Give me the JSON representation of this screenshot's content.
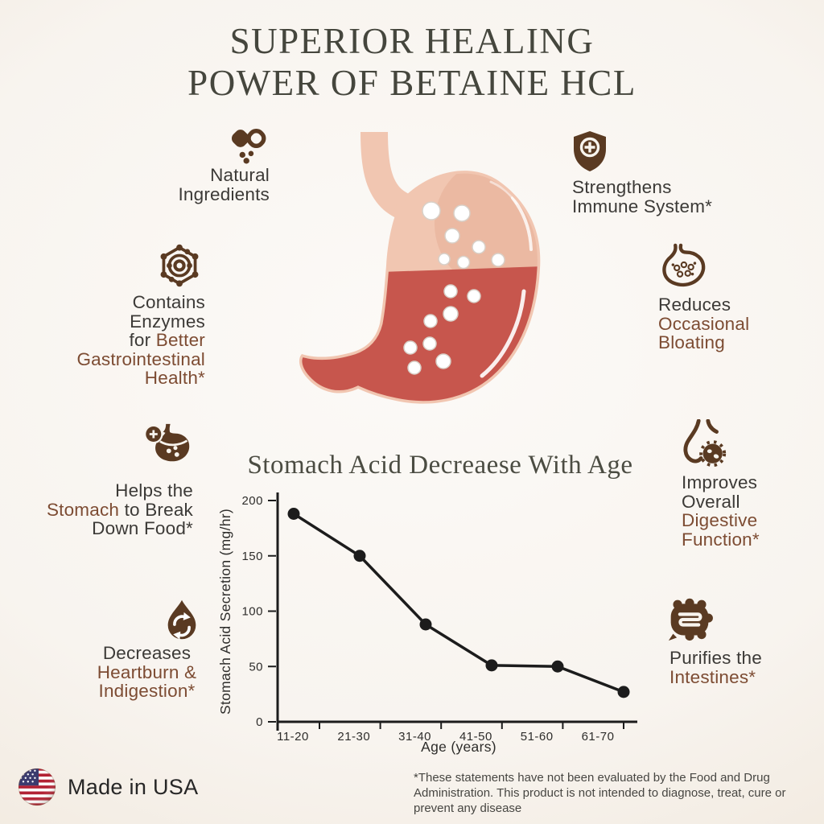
{
  "title": {
    "line1": "SUPERIOR HEALING",
    "line2": "POWER OF BETAINE HCL"
  },
  "callouts": {
    "natural_ingredients": {
      "icon": "pills-icon",
      "lines": [
        [
          {
            "t": "Natural",
            "c": "dark"
          }
        ],
        [
          {
            "t": "Ingredients",
            "c": "dark"
          }
        ]
      ]
    },
    "strengthens_immune": {
      "icon": "shield-plus-icon",
      "lines": [
        [
          {
            "t": "Strengthens",
            "c": "dark"
          }
        ],
        [
          {
            "t": "Immune System*",
            "c": "dark"
          }
        ]
      ]
    },
    "contains_enzymes": {
      "icon": "enzyme-icon",
      "lines": [
        [
          {
            "t": "Contains",
            "c": "dark"
          }
        ],
        [
          {
            "t": "Enzymes",
            "c": "dark"
          }
        ],
        [
          {
            "t": "for ",
            "c": "dark"
          },
          {
            "t": "Better",
            "c": "brown"
          }
        ],
        [
          {
            "t": "Gastrointestinal",
            "c": "brown"
          }
        ],
        [
          {
            "t": "Health*",
            "c": "brown"
          }
        ]
      ]
    },
    "reduces_bloating": {
      "icon": "stomach-bubbles-icon",
      "lines": [
        [
          {
            "t": "Reduces",
            "c": "dark"
          }
        ],
        [
          {
            "t": "Occasional",
            "c": "brown"
          }
        ],
        [
          {
            "t": "Bloating",
            "c": "brown"
          }
        ]
      ]
    },
    "helps_stomach": {
      "icon": "stomach-plus-icon",
      "lines": [
        [
          {
            "t": "Helps the",
            "c": "dark"
          }
        ],
        [
          {
            "t": "Stomach",
            "c": "brown"
          },
          {
            "t": " to Break",
            "c": "dark"
          }
        ],
        [
          {
            "t": "Down Food*",
            "c": "dark"
          }
        ]
      ]
    },
    "improves_digestive": {
      "icon": "digestive-tract-icon",
      "lines": [
        [
          {
            "t": "Improves",
            "c": "dark"
          }
        ],
        [
          {
            "t": "Overall",
            "c": "dark"
          }
        ],
        [
          {
            "t": "Digestive",
            "c": "brown"
          }
        ],
        [
          {
            "t": "Function*",
            "c": "brown"
          }
        ]
      ]
    },
    "decreases_heartburn": {
      "icon": "refresh-drop-icon",
      "lines": [
        [
          {
            "t": "Decreases",
            "c": "dark"
          }
        ],
        [
          {
            "t": "Heartburn &",
            "c": "brown"
          }
        ],
        [
          {
            "t": "Indigestion*",
            "c": "brown"
          }
        ]
      ]
    },
    "purifies_intestines": {
      "icon": "intestines-icon",
      "lines": [
        [
          {
            "t": "Purifies the",
            "c": "dark"
          }
        ],
        [
          {
            "t": "Intestines*",
            "c": "brown"
          }
        ]
      ]
    }
  },
  "center_illustration": "stomach-with-acid-and-bubbles",
  "chart_data": {
    "type": "line",
    "title": "Stomach Acid Decreaese With Age",
    "categories": [
      "11-20",
      "21-30",
      "31-40",
      "41-50",
      "51-60",
      "61-70"
    ],
    "values": [
      188,
      150,
      88,
      51,
      50,
      27
    ],
    "xlabel": "Age (years)",
    "ylabel": "Stomach Acid Secretion (mg/hr)",
    "ylim": [
      0,
      200
    ],
    "yticks": [
      0,
      50,
      100,
      150,
      200
    ],
    "grid": false,
    "marker": "circle",
    "legend": false,
    "line_color": "#1c1c1c"
  },
  "footer": {
    "flag_icon": "usa-flag-icon",
    "made_in": "Made in USA",
    "disclaimer": "*These statements have not been evaluated by the Food and Drug Administration. This product is not intended to diagnose, treat, cure or prevent any disease"
  },
  "colors": {
    "background_cream": "#f8f4ef",
    "title_olive": "#45463d",
    "text_dark": "#3c3a37",
    "accent_brown": "#7d4c33",
    "icon_brown": "#5a3a22",
    "stomach_pink": "#f1c6b1",
    "acid_red": "#c7564d",
    "chart_line": "#1c1c1c"
  }
}
